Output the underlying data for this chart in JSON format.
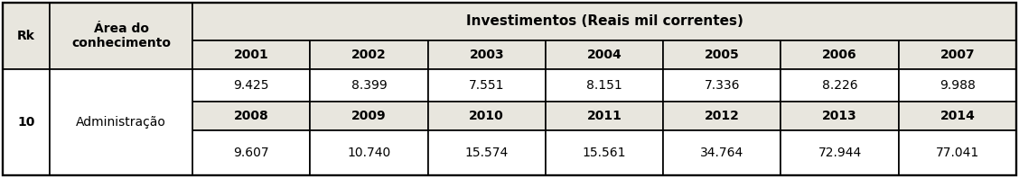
{
  "header_bg": "#e8e6de",
  "header_bg_years": "#e8e6de",
  "white_bg": "#ffffff",
  "border_color": "#000000",
  "col_header1": "Rk",
  "col_header2": "Área do\nconhecimento",
  "col_header3": "Investimentos (Reais mil correntes)",
  "years_row1": [
    "2001",
    "2002",
    "2003",
    "2004",
    "2005",
    "2006",
    "2007"
  ],
  "years_row2": [
    "2008",
    "2009",
    "2010",
    "2011",
    "2012",
    "2013",
    "2014"
  ],
  "values_row1": [
    "9.425",
    "8.399",
    "7.551",
    "8.151",
    "7.336",
    "8.226",
    "9.988"
  ],
  "values_row2": [
    "9.607",
    "10.740",
    "15.574",
    "15.561",
    "34.764",
    "72.944",
    "77.041"
  ],
  "rk_value": "10",
  "area_value": "Administração",
  "text_color": "#000000",
  "header_font_size": 10,
  "cell_font_size": 10,
  "figw": 11.28,
  "figh": 1.98,
  "dpi": 100
}
